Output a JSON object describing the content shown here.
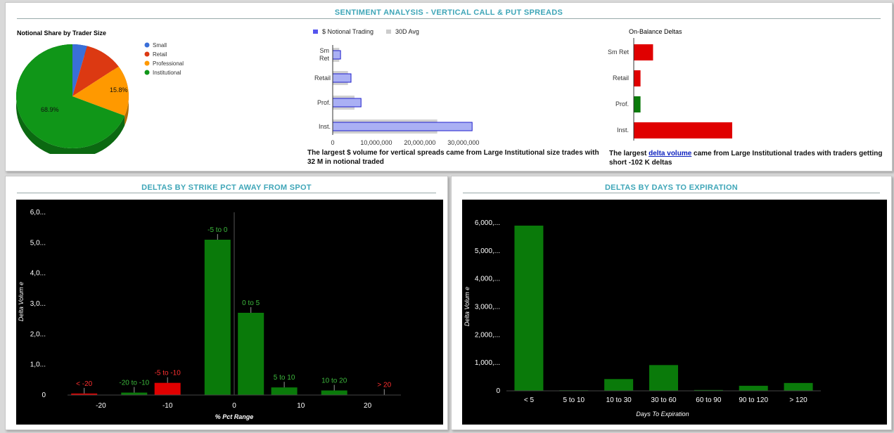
{
  "top": {
    "title": "SENTIMENT ANALYSIS - VERTICAL CALL & PUT SPREADS",
    "pie": {
      "title": "Notional Share by Trader Size",
      "legend": [
        {
          "name": "Small",
          "color": "#3a6fd8"
        },
        {
          "name": "Retail",
          "color": "#dc3912"
        },
        {
          "name": "Professional",
          "color": "#ff9900"
        },
        {
          "name": "Institutional",
          "color": "#109618"
        }
      ],
      "label_prof": "15.8%",
      "label_inst": "68.9%"
    },
    "notional": {
      "legend_notional": "$ Notional Trading",
      "legend_avg": "30D Avg",
      "cat_sm": "Sm",
      "cat_ret": "Ret",
      "cat_retail": "Retail",
      "cat_prof": "Prof.",
      "cat_inst": "Inst.",
      "ticks": [
        "0",
        "10,000,000",
        "20,000,000",
        "30,000,000"
      ],
      "desc": "The largest $ volume for vertical spreads came from Large Institutional size trades with 32 M in notional traded"
    },
    "deltas": {
      "title": "On-Balance Deltas",
      "cats": [
        "Sm Ret",
        "Retail",
        "Prof.",
        "Inst."
      ],
      "desc_pre": "The largest ",
      "desc_link": "delta volume",
      "desc_post": " came from Large Institutional trades with traders getting short -102 K deltas"
    }
  },
  "left": {
    "title": "DELTAS BY STRIKE PCT AWAY FROM SPOT"
  },
  "right": {
    "title": "DELTAS BY DAYS TO EXPIRATION"
  },
  "chart_data": [
    {
      "type": "pie",
      "title": "Notional Share by Trader Size",
      "categories": [
        "Small",
        "Retail",
        "Professional",
        "Institutional"
      ],
      "values": [
        4.2,
        11.1,
        15.8,
        68.9
      ],
      "colors": [
        "#3a6fd8",
        "#dc3912",
        "#ff9900",
        "#109618"
      ]
    },
    {
      "type": "bar",
      "orientation": "horizontal",
      "categories": [
        "Sm Ret",
        "Retail",
        "Prof.",
        "Inst."
      ],
      "series": [
        {
          "name": "$ Notional Trading",
          "values": [
            1800000,
            4200000,
            6500000,
            32000000
          ]
        },
        {
          "name": "30D Avg",
          "values": [
            1500000,
            3500000,
            5000000,
            24000000
          ]
        }
      ],
      "xlim": [
        0,
        36000000
      ],
      "ticks": [
        0,
        10000000,
        20000000,
        30000000
      ]
    },
    {
      "type": "bar",
      "orientation": "horizontal",
      "title": "On-Balance Deltas",
      "categories": [
        "Sm Ret",
        "Retail",
        "Prof.",
        "Inst."
      ],
      "values": [
        -20000,
        -7000,
        7000,
        -102000
      ],
      "colors": [
        "#e00000",
        "#e00000",
        "#0a7a0a",
        "#e00000"
      ]
    },
    {
      "type": "bar",
      "title": "",
      "xlabel": "% Pct Range",
      "ylabel": "Delta Volum e",
      "bars": [
        {
          "label": "< -20",
          "x": -22.5,
          "value": 50,
          "color": "#e00000"
        },
        {
          "label": "-20 to -10",
          "x": -15,
          "value": 80,
          "color": "#0a7a0a"
        },
        {
          "label": "-5 to -10",
          "x": -10,
          "value": 400,
          "color": "#e00000"
        },
        {
          "label": "-5 to 0",
          "x": -2.5,
          "value": 5100,
          "color": "#0a7a0a"
        },
        {
          "label": "0 to 5",
          "x": 2.5,
          "value": 2700,
          "color": "#0a7a0a"
        },
        {
          "label": "5 to 10",
          "x": 7.5,
          "value": 250,
          "color": "#0a7a0a"
        },
        {
          "label": "10 to 20",
          "x": 15,
          "value": 150,
          "color": "#0a7a0a"
        },
        {
          "label": "> 20",
          "x": 22.5,
          "value": 10,
          "color": "#e00000"
        }
      ],
      "xticks": [
        -20,
        -10,
        0,
        10,
        20
      ],
      "yticks": [
        "0",
        "1,0...",
        "2,0...",
        "3,0...",
        "4,0...",
        "5,0...",
        "6,0..."
      ],
      "ylim": [
        0,
        6000
      ],
      "xlim": [
        -25,
        25
      ]
    },
    {
      "type": "bar",
      "title": "",
      "xlabel": "Days To Expiration",
      "ylabel": "Delta Volum e",
      "categories": [
        "< 5",
        "5 to 10",
        "10 to 30",
        "30 to 60",
        "60 to 90",
        "90 to 120",
        "> 120"
      ],
      "values": [
        5900,
        20,
        420,
        920,
        30,
        180,
        280
      ],
      "yticks": [
        "0",
        "1,000,...",
        "2,000,...",
        "3,000,...",
        "4,000,...",
        "5,000,...",
        "6,000,..."
      ],
      "ylim": [
        0,
        6000
      ],
      "color": "#0a7a0a"
    }
  ]
}
